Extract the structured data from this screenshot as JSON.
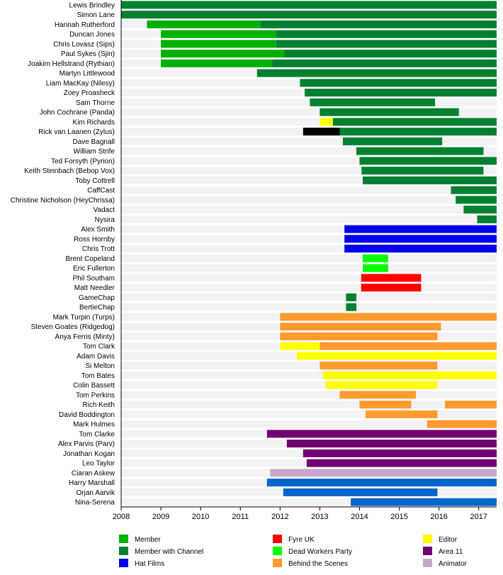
{
  "chart_data": {
    "type": "bar",
    "subtype": "timeline",
    "title": "",
    "xlabel": "",
    "ylabel": "",
    "xlim": [
      2008,
      2017.45
    ],
    "x_ticks": [
      "2008",
      "2009",
      "2010",
      "2011",
      "2012",
      "2013",
      "2014",
      "2015",
      "2016",
      "2017"
    ],
    "grid": false,
    "legend_position": "bottom",
    "categories_legend": [
      {
        "key": "member",
        "label": "Member",
        "color": "#00b000"
      },
      {
        "key": "member_channel",
        "label": "Member with Channel",
        "color": "#008030"
      },
      {
        "key": "hat_films",
        "label": "Hat Films",
        "color": "#0000ee"
      },
      {
        "key": "fyre_uk",
        "label": "Fyre UK",
        "color": "#ff0000"
      },
      {
        "key": "dead_workers",
        "label": "Dead Workers Party",
        "color": "#00ff00"
      },
      {
        "key": "behind_scenes",
        "label": "Behind the Scenes",
        "color": "#ff9a2e"
      },
      {
        "key": "editor",
        "label": "Editor",
        "color": "#ffff00"
      },
      {
        "key": "area11",
        "label": "Area 11",
        "color": "#700070"
      },
      {
        "key": "animator",
        "label": "Animator",
        "color": "#c8a8cc"
      },
      {
        "key": "other_blue",
        "label": "",
        "color": "#0066cc"
      },
      {
        "key": "other_black",
        "label": "",
        "color": "#000000"
      }
    ],
    "rows": [
      {
        "name": "Lewis Brindley",
        "segments": [
          {
            "start": 2008,
            "end": 2017.45,
            "cat": "member_channel"
          }
        ]
      },
      {
        "name": "Simon Lane",
        "segments": [
          {
            "start": 2008,
            "end": 2017.45,
            "cat": "member_channel"
          }
        ]
      },
      {
        "name": "Hannah Rutherford",
        "segments": [
          {
            "start": 2008.65,
            "end": 2011.5,
            "cat": "member"
          },
          {
            "start": 2011.5,
            "end": 2017.45,
            "cat": "member_channel"
          }
        ]
      },
      {
        "name": "Duncan Jones",
        "segments": [
          {
            "start": 2009,
            "end": 2011.9,
            "cat": "member"
          },
          {
            "start": 2011.9,
            "end": 2017.45,
            "cat": "member_channel"
          }
        ]
      },
      {
        "name": "Chris Lovasz (Sips)",
        "segments": [
          {
            "start": 2009,
            "end": 2011.9,
            "cat": "member"
          },
          {
            "start": 2011.9,
            "end": 2017.45,
            "cat": "member_channel"
          }
        ]
      },
      {
        "name": "Paul Sykes (Sjin)",
        "segments": [
          {
            "start": 2009,
            "end": 2012.1,
            "cat": "member"
          },
          {
            "start": 2012.1,
            "end": 2017.45,
            "cat": "member_channel"
          }
        ]
      },
      {
        "name": "Joakim Hellstrand (Rythian)",
        "segments": [
          {
            "start": 2009,
            "end": 2011.8,
            "cat": "member"
          },
          {
            "start": 2011.8,
            "end": 2017.45,
            "cat": "member_channel"
          }
        ]
      },
      {
        "name": "Martyn Littlewood",
        "segments": [
          {
            "start": 2011.42,
            "end": 2017.45,
            "cat": "member_channel"
          }
        ]
      },
      {
        "name": "Liam MacKay (Nilesy)",
        "segments": [
          {
            "start": 2012.5,
            "end": 2017.45,
            "cat": "member_channel"
          }
        ]
      },
      {
        "name": "Zoey Proasheck",
        "segments": [
          {
            "start": 2012.62,
            "end": 2017.45,
            "cat": "member_channel"
          }
        ]
      },
      {
        "name": "Sam Thorne",
        "segments": [
          {
            "start": 2012.75,
            "end": 2015.9,
            "cat": "member_channel"
          }
        ]
      },
      {
        "name": "John Cochrane (Panda)",
        "segments": [
          {
            "start": 2013.0,
            "end": 2016.5,
            "cat": "member_channel"
          }
        ]
      },
      {
        "name": "Kim Richards",
        "segments": [
          {
            "start": 2013.0,
            "end": 2013.33,
            "cat": "editor"
          },
          {
            "start": 2013.33,
            "end": 2017.45,
            "cat": "member_channel"
          }
        ]
      },
      {
        "name": "Rick van Laanen (Zylus)",
        "segments": [
          {
            "start": 2012.58,
            "end": 2013.5,
            "cat": "other_black"
          },
          {
            "start": 2013.5,
            "end": 2017.45,
            "cat": "member_channel"
          }
        ]
      },
      {
        "name": "Dave Bagnall",
        "segments": [
          {
            "start": 2013.58,
            "end": 2016.08,
            "cat": "member_channel"
          }
        ]
      },
      {
        "name": "William Strife",
        "segments": [
          {
            "start": 2013.92,
            "end": 2017.12,
            "cat": "member_channel"
          }
        ]
      },
      {
        "name": "Ted Forsyth (Pyrion)",
        "segments": [
          {
            "start": 2014.0,
            "end": 2017.45,
            "cat": "member_channel"
          }
        ]
      },
      {
        "name": "Keith Steinbach (Bebop Vox)",
        "segments": [
          {
            "start": 2014.05,
            "end": 2017.12,
            "cat": "member_channel"
          }
        ]
      },
      {
        "name": "Toby Cottrell",
        "segments": [
          {
            "start": 2014.08,
            "end": 2017.45,
            "cat": "member_channel"
          }
        ]
      },
      {
        "name": "CaffCast",
        "segments": [
          {
            "start": 2016.3,
            "end": 2017.45,
            "cat": "member_channel"
          }
        ]
      },
      {
        "name": "Christine Nicholson (HeyChrissa)",
        "segments": [
          {
            "start": 2016.42,
            "end": 2017.45,
            "cat": "member_channel"
          }
        ]
      },
      {
        "name": "Vadact",
        "segments": [
          {
            "start": 2016.62,
            "end": 2017.45,
            "cat": "member_channel"
          }
        ]
      },
      {
        "name": "Nysira",
        "segments": [
          {
            "start": 2016.96,
            "end": 2017.45,
            "cat": "member_channel"
          }
        ]
      },
      {
        "name": "Alex Smith",
        "segments": [
          {
            "start": 2013.62,
            "end": 2017.45,
            "cat": "hat_films"
          }
        ]
      },
      {
        "name": "Ross Hornby",
        "segments": [
          {
            "start": 2013.62,
            "end": 2017.45,
            "cat": "hat_films"
          }
        ]
      },
      {
        "name": "Chris Trott",
        "segments": [
          {
            "start": 2013.62,
            "end": 2017.45,
            "cat": "hat_films"
          }
        ]
      },
      {
        "name": "Brent Copeland",
        "segments": [
          {
            "start": 2014.08,
            "end": 2014.72,
            "cat": "dead_workers"
          }
        ]
      },
      {
        "name": "Eric Fullerton",
        "segments": [
          {
            "start": 2014.08,
            "end": 2014.72,
            "cat": "dead_workers"
          }
        ]
      },
      {
        "name": "Phil Southam",
        "segments": [
          {
            "start": 2014.04,
            "end": 2015.55,
            "cat": "fyre_uk"
          }
        ]
      },
      {
        "name": "Matt Needler",
        "segments": [
          {
            "start": 2014.04,
            "end": 2015.55,
            "cat": "fyre_uk"
          }
        ]
      },
      {
        "name": "GameChap",
        "segments": [
          {
            "start": 2013.66,
            "end": 2013.92,
            "cat": "member_channel"
          }
        ]
      },
      {
        "name": "BertieChap",
        "segments": [
          {
            "start": 2013.66,
            "end": 2013.92,
            "cat": "member_channel"
          }
        ]
      },
      {
        "name": "Mark Turpin (Turps)",
        "segments": [
          {
            "start": 2012.0,
            "end": 2017.45,
            "cat": "behind_scenes"
          }
        ]
      },
      {
        "name": "Steven Goates (Ridgedog)",
        "segments": [
          {
            "start": 2012.0,
            "end": 2016.05,
            "cat": "behind_scenes"
          }
        ]
      },
      {
        "name": "Anya Ferris (Minty)",
        "segments": [
          {
            "start": 2012.0,
            "end": 2015.96,
            "cat": "behind_scenes"
          }
        ]
      },
      {
        "name": "Tom Clark",
        "segments": [
          {
            "start": 2012.0,
            "end": 2013.0,
            "cat": "editor"
          },
          {
            "start": 2013.0,
            "end": 2017.45,
            "cat": "behind_scenes"
          }
        ]
      },
      {
        "name": "Adam Davis",
        "segments": [
          {
            "start": 2012.42,
            "end": 2017.45,
            "cat": "editor"
          }
        ]
      },
      {
        "name": "Si Melton",
        "segments": [
          {
            "start": 2013.0,
            "end": 2015.96,
            "cat": "behind_scenes"
          }
        ]
      },
      {
        "name": "Tom Bates",
        "segments": [
          {
            "start": 2013.08,
            "end": 2017.45,
            "cat": "editor"
          }
        ]
      },
      {
        "name": "Colin Bassett",
        "segments": [
          {
            "start": 2013.15,
            "end": 2015.96,
            "cat": "editor"
          }
        ]
      },
      {
        "name": "Tom Perkins",
        "segments": [
          {
            "start": 2013.5,
            "end": 2015.42,
            "cat": "behind_scenes"
          }
        ]
      },
      {
        "name": "Rich Keith",
        "segments": [
          {
            "start": 2014.0,
            "end": 2015.3,
            "cat": "behind_scenes"
          },
          {
            "start": 2016.15,
            "end": 2017.45,
            "cat": "behind_scenes"
          }
        ]
      },
      {
        "name": "David Boddington",
        "segments": [
          {
            "start": 2014.15,
            "end": 2015.96,
            "cat": "behind_scenes"
          }
        ]
      },
      {
        "name": "Mark Hulmes",
        "segments": [
          {
            "start": 2015.7,
            "end": 2017.45,
            "cat": "behind_scenes"
          }
        ]
      },
      {
        "name": "Tom Clarke",
        "segments": [
          {
            "start": 2011.67,
            "end": 2017.45,
            "cat": "area11"
          }
        ]
      },
      {
        "name": "Alex Parvis (Parv)",
        "segments": [
          {
            "start": 2012.17,
            "end": 2017.45,
            "cat": "area11"
          }
        ]
      },
      {
        "name": "Jonathan Kogan",
        "segments": [
          {
            "start": 2012.58,
            "end": 2017.45,
            "cat": "area11"
          }
        ]
      },
      {
        "name": "Leo Taylor",
        "segments": [
          {
            "start": 2012.67,
            "end": 2017.45,
            "cat": "area11"
          }
        ]
      },
      {
        "name": "Ciaran Askew",
        "segments": [
          {
            "start": 2011.75,
            "end": 2017.45,
            "cat": "animator"
          }
        ]
      },
      {
        "name": "Harry Marshall",
        "segments": [
          {
            "start": 2011.67,
            "end": 2017.45,
            "cat": "other_blue"
          }
        ]
      },
      {
        "name": "Orjan Aarvik",
        "segments": [
          {
            "start": 2012.08,
            "end": 2015.96,
            "cat": "other_blue"
          }
        ]
      },
      {
        "name": "Nina-Serena",
        "segments": [
          {
            "start": 2013.78,
            "end": 2017.45,
            "cat": "other_blue"
          }
        ]
      }
    ]
  }
}
